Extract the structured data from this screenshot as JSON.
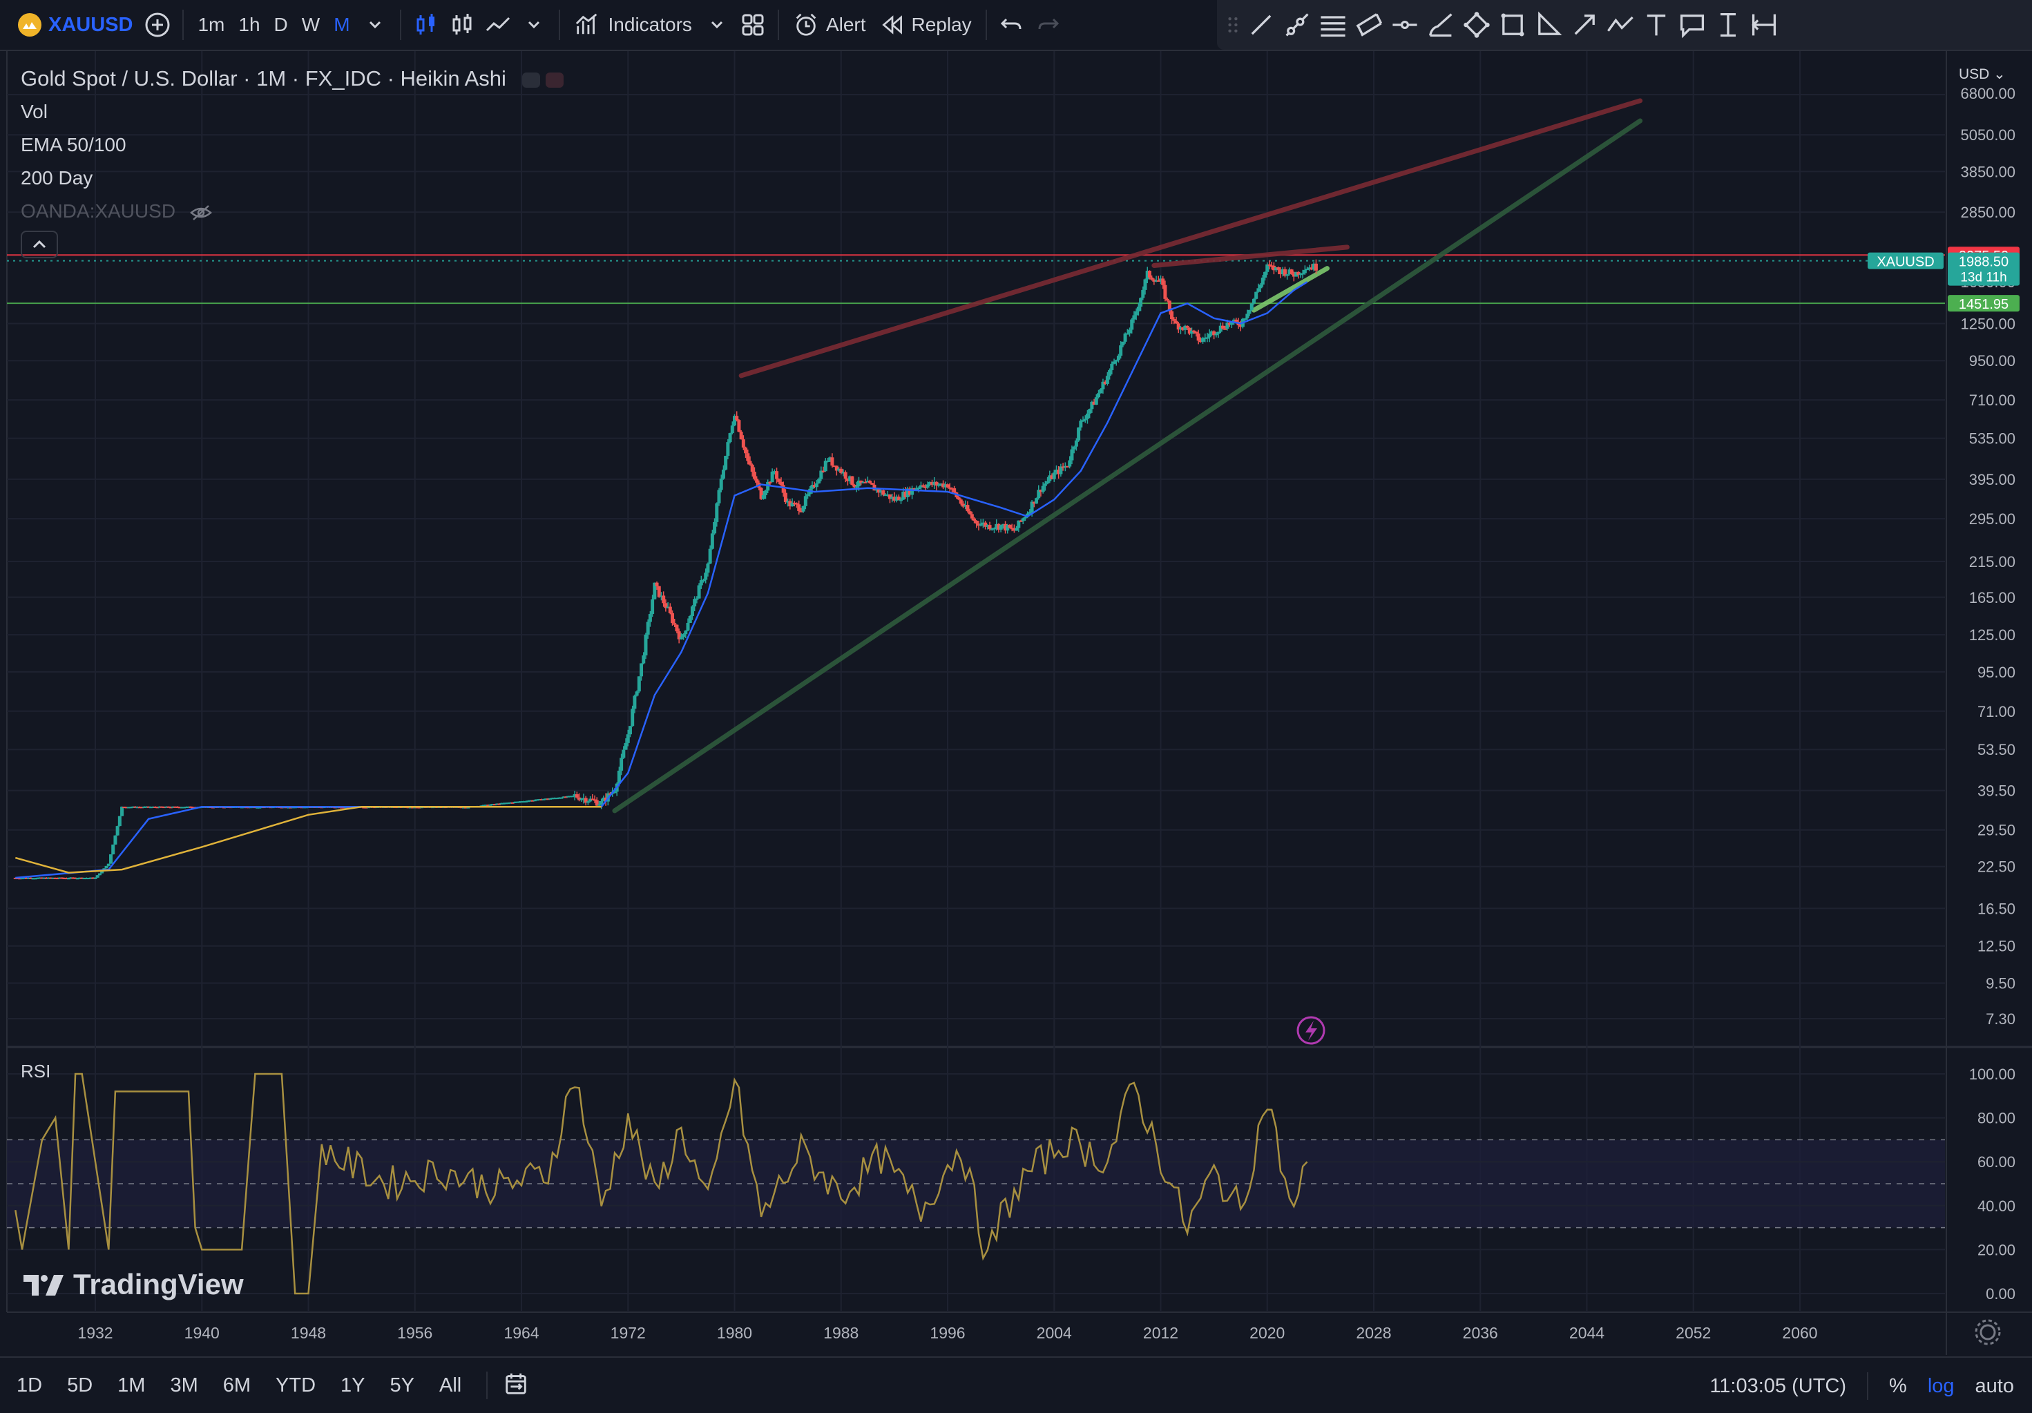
{
  "toolbar": {
    "symbol": "XAUUSD",
    "intervals": [
      "1m",
      "1h",
      "D",
      "W",
      "M"
    ],
    "active_interval": "M",
    "indicators_label": "Indicators",
    "alert_label": "Alert",
    "replay_label": "Replay"
  },
  "legend": {
    "title": "Gold Spot / U.S. Dollar · 1M · FX_IDC · Heikin Ashi",
    "lines": [
      "Vol",
      "EMA 50/100",
      "200 Day",
      "OANDA:XAUUSD"
    ]
  },
  "price_scale": {
    "currency": "USD"
  },
  "rsi_pane": {
    "label": "RSI"
  },
  "watermark": "TradingView",
  "bottom_bar": {
    "ranges": [
      "1D",
      "5D",
      "1M",
      "3M",
      "6M",
      "YTD",
      "1Y",
      "5Y",
      "All"
    ],
    "clock": "11:03:05 (UTC)",
    "percent_label": "%",
    "log_label": "log",
    "auto_label": "auto"
  },
  "colors": {
    "background": "#131722",
    "grid": "#1e2230",
    "bull": "#26a69a",
    "bear": "#ef5350",
    "ema_fast": "#2962ff",
    "ma_200": "#e0b33a",
    "resistance_line": "#7a2a33",
    "support_line": "#2e5a3c",
    "rsi_line": "#a89040",
    "accent": "#2962ff"
  },
  "chart_data": {
    "type": "line",
    "scale": "log",
    "ylim": [
      7.3,
      6800
    ],
    "y_ticks": [
      6800,
      5050,
      3850,
      2850,
      1250,
      950,
      710,
      535,
      395,
      295,
      215,
      165,
      125,
      95,
      71,
      53.5,
      39.5,
      29.5,
      22.5,
      16.5,
      12.5,
      9.5,
      7.3
    ],
    "y_tick_labels": [
      "6800.00",
      "5050.00",
      "3850.00",
      "2850.00",
      "1250.00",
      "950.00",
      "710.00",
      "535.00",
      "395.00",
      "295.00",
      "215.00",
      "165.00",
      "125.00",
      "95.00",
      "71.00",
      "53.50",
      "39.50",
      "29.50",
      "22.50",
      "16.50",
      "12.50",
      "9.50",
      "7.30"
    ],
    "xlim": [
      1926,
      2070
    ],
    "x_ticks": [
      1932,
      1940,
      1948,
      1956,
      1964,
      1972,
      1980,
      1988,
      1996,
      2004,
      2012,
      2020,
      2028,
      2036,
      2044,
      2052,
      2060
    ],
    "series": [
      {
        "type": "candles",
        "x": [
          1926,
          1930,
          1932,
          1933,
          1934,
          1940,
          1950,
          1960,
          1968,
          1970,
          1971,
          1972,
          1973,
          1974,
          1975,
          1976,
          1977,
          1978,
          1979,
          1980,
          1981,
          1982,
          1983,
          1984,
          1985,
          1986,
          1987,
          1988,
          1989,
          1990,
          1992,
          1994,
          1996,
          1998,
          1999,
          2000,
          2001,
          2002,
          2003,
          2004,
          2005,
          2006,
          2007,
          2008,
          2009,
          2010,
          2011,
          2012,
          2013,
          2014,
          2015,
          2016,
          2017,
          2018,
          2019,
          2020,
          2021,
          2022,
          2023
        ],
        "y": [
          20.7,
          20.7,
          20.7,
          23,
          35,
          35,
          35,
          35,
          38,
          36,
          40,
          60,
          100,
          180,
          150,
          120,
          160,
          210,
          400,
          650,
          450,
          350,
          420,
          330,
          320,
          380,
          460,
          420,
          380,
          380,
          340,
          380,
          380,
          290,
          280,
          280,
          270,
          310,
          370,
          410,
          440,
          600,
          700,
          850,
          1050,
          1300,
          1800,
          1700,
          1250,
          1200,
          1100,
          1180,
          1250,
          1250,
          1500,
          1900,
          1850,
          1800,
          1900
        ]
      },
      {
        "name": "EMA 50/100",
        "x": [
          1926,
          1933,
          1936,
          1940,
          1970,
          1972,
          1974,
          1976,
          1978,
          1980,
          1982,
          1984,
          1986,
          1990,
          1996,
          2000,
          2002,
          2004,
          2006,
          2008,
          2010,
          2012,
          2014,
          2016,
          2018,
          2020,
          2022,
          2023
        ],
        "y": [
          20.7,
          22,
          32,
          35,
          35,
          45,
          80,
          110,
          170,
          350,
          380,
          370,
          360,
          370,
          360,
          320,
          300,
          340,
          420,
          600,
          900,
          1350,
          1450,
          1300,
          1250,
          1350,
          1600,
          1700
        ]
      },
      {
        "name": "200 Day",
        "x": [
          1926,
          1930,
          1934,
          1940,
          1948,
          1952,
          1960,
          1970
        ],
        "y": [
          24,
          21.5,
          22,
          26,
          33,
          35,
          35,
          35
        ]
      }
    ],
    "horizontal_lines": [
      {
        "y": 2075.5,
        "label": "2075.50",
        "color": "#f23645"
      },
      {
        "y": 1988.5,
        "label": "1988.50",
        "color": "#26a69a",
        "style": "dotted"
      },
      {
        "y": 1451.95,
        "label": "1451.95",
        "color": "#4caf50"
      }
    ],
    "last_price_badge": {
      "symbol": "XAUUSD",
      "price": "1988.50",
      "countdown": "13d 11h"
    },
    "partially_hidden_tick": "1650.00",
    "trend_lines": [
      {
        "from": [
          1980.5,
          850
        ],
        "to": [
          2048,
          6500
        ],
        "color": "#7a2a33"
      },
      {
        "from": [
          1971,
          34
        ],
        "to": [
          2048,
          5600
        ],
        "color": "#2e5a3c"
      },
      {
        "from": [
          2011.5,
          1920
        ],
        "to": [
          2026,
          2200
        ],
        "color": "#7a2a33"
      },
      {
        "from": [
          2019,
          1380
        ],
        "to": [
          2024.5,
          1880
        ],
        "color": "#7dc86d"
      }
    ],
    "rsi": {
      "ylim": [
        0,
        100
      ],
      "y_ticks": [
        100,
        80,
        60,
        40,
        20,
        0
      ],
      "y_tick_labels": [
        "100.00",
        "80.00",
        "60.00",
        "40.00",
        "20.00",
        "0.00"
      ],
      "bands": [
        70,
        50,
        30
      ],
      "x": [
        1926,
        1926.5,
        1928,
        1929,
        1930,
        1930.5,
        1931,
        1933,
        1933.5,
        1934,
        1936,
        1937,
        1939,
        1939.5,
        1940,
        1943,
        1944,
        1946,
        1947,
        1948,
        1949,
        1950,
        1954,
        1958,
        1962,
        1966,
        1968,
        1970,
        1972,
        1974,
        1976,
        1978,
        1980,
        1982,
        1985,
        1988,
        1991,
        1994,
        1997,
        1999,
        2000,
        2002,
        2005,
        2008,
        2010,
        2012,
        2014,
        2016,
        2018,
        2020,
        2021,
        2022,
        2023
      ],
      "y": [
        38,
        20,
        70,
        80,
        20,
        100,
        100,
        20,
        92,
        92,
        92,
        92,
        92,
        30,
        20,
        20,
        100,
        100,
        0,
        0,
        68,
        62,
        50,
        56,
        48,
        55,
        100,
        40,
        80,
        45,
        75,
        40,
        97,
        35,
        65,
        45,
        62,
        38,
        68,
        15,
        35,
        55,
        70,
        60,
        95,
        62,
        30,
        55,
        38,
        90,
        60,
        35,
        60
      ]
    }
  }
}
